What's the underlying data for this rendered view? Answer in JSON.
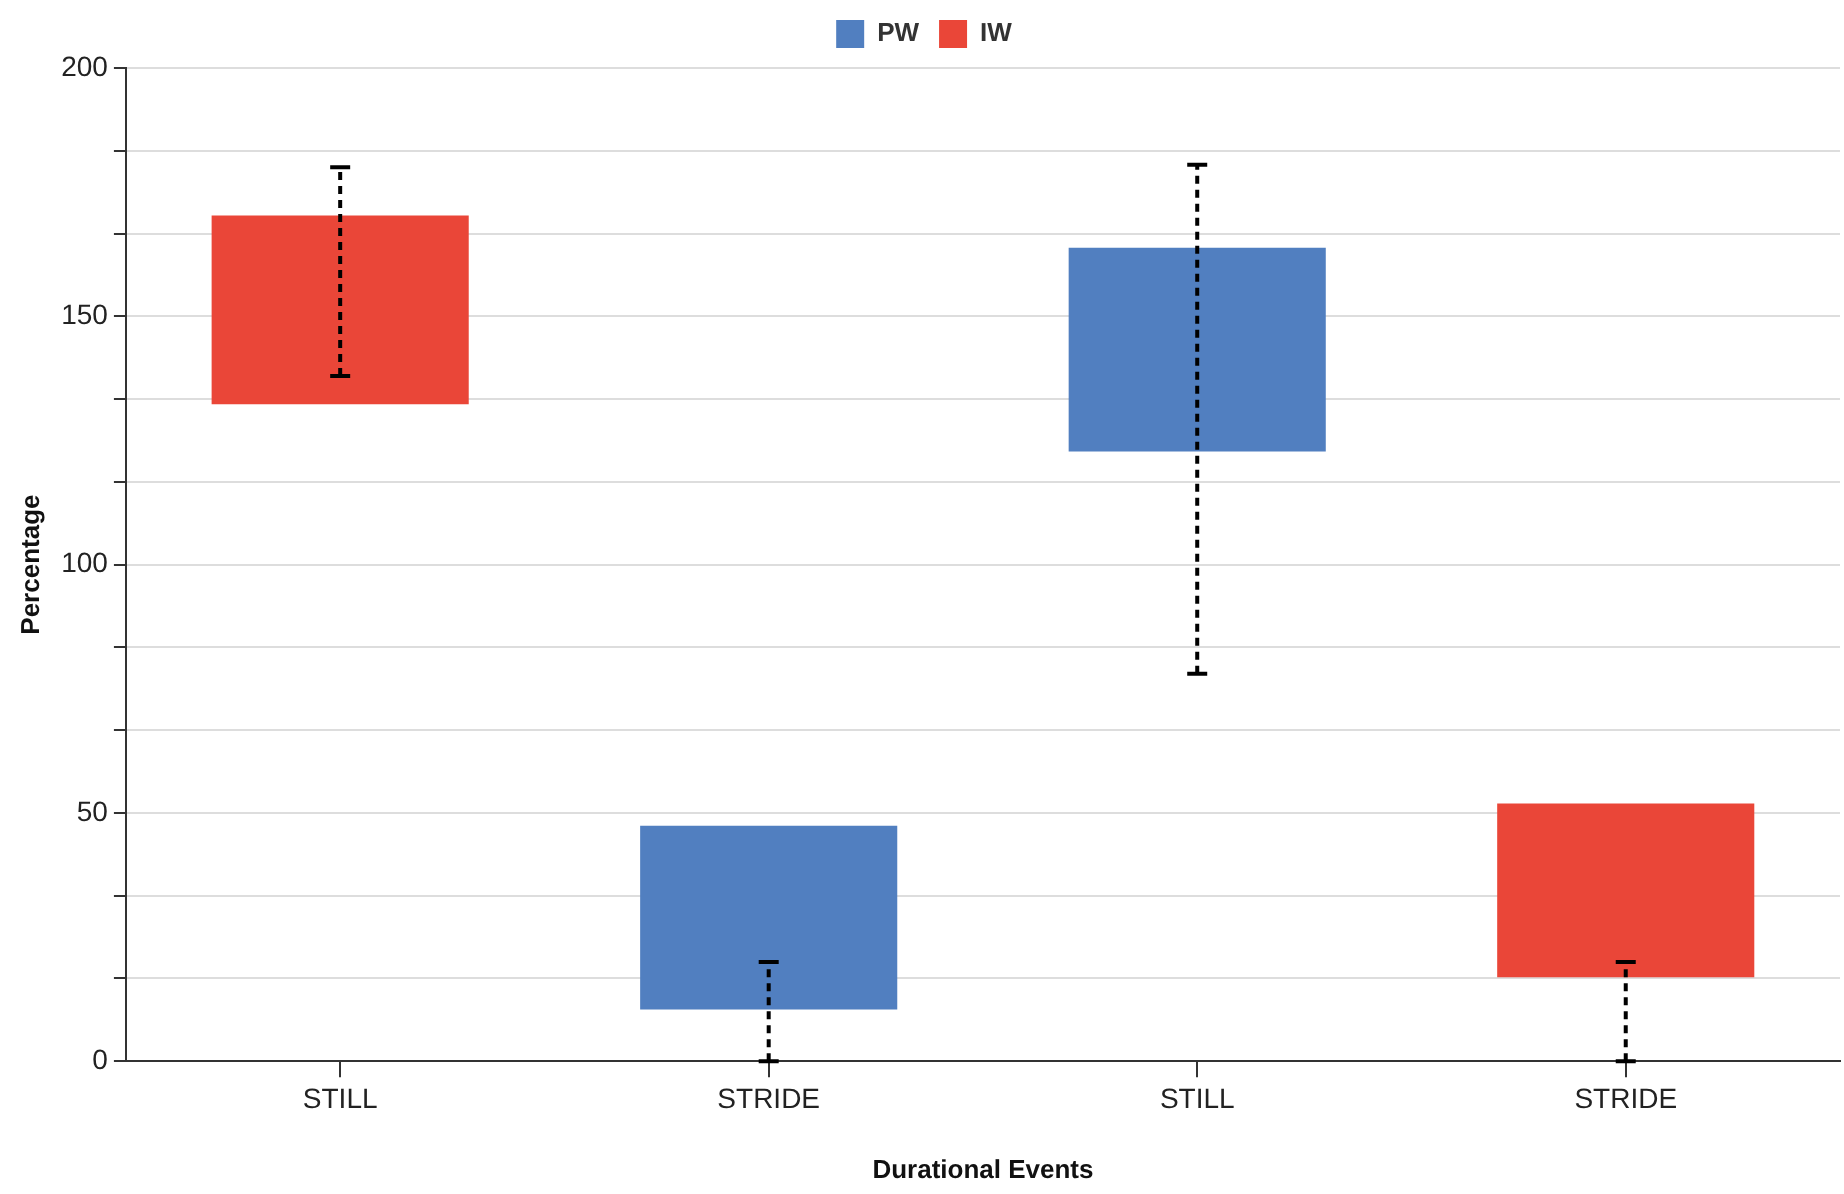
{
  "chart_data": {
    "type": "bar",
    "xlabel": "Durational Events",
    "ylabel": "Percentage",
    "categories": [
      "STILL",
      "STRIDE",
      "STILL",
      "STRIDE"
    ],
    "series": [
      {
        "name": "PW",
        "color": "#517fc0",
        "values": [
          null,
          37,
          41,
          null
        ],
        "base": [
          null,
          10.4,
          122.8,
          null
        ],
        "errors": [
          null,
          [
            0,
            20
          ],
          [
            78,
            180.5
          ],
          null
        ]
      },
      {
        "name": "IW",
        "color": "#ea4638",
        "values": [
          38,
          null,
          null,
          35
        ],
        "base": [
          132.3,
          null,
          null,
          16.9
        ],
        "errors": [
          [
            138,
            180
          ],
          null,
          null,
          [
            0,
            20
          ]
        ]
      }
    ],
    "ylim": [
      0,
      200
    ],
    "yticks": [
      0,
      {
        "value": 16.667,
        "label": null
      },
      {
        "value": 33.333,
        "label": null
      },
      50,
      {
        "value": 66.667,
        "label": null
      },
      {
        "value": 83.333,
        "label": null
      },
      100,
      {
        "value": 116.667,
        "label": null
      },
      {
        "value": 133.333,
        "label": null
      },
      150,
      {
        "value": 166.667,
        "label": null
      },
      {
        "value": 183.333,
        "label": null
      },
      200
    ],
    "grid": "y",
    "legend": "top"
  }
}
